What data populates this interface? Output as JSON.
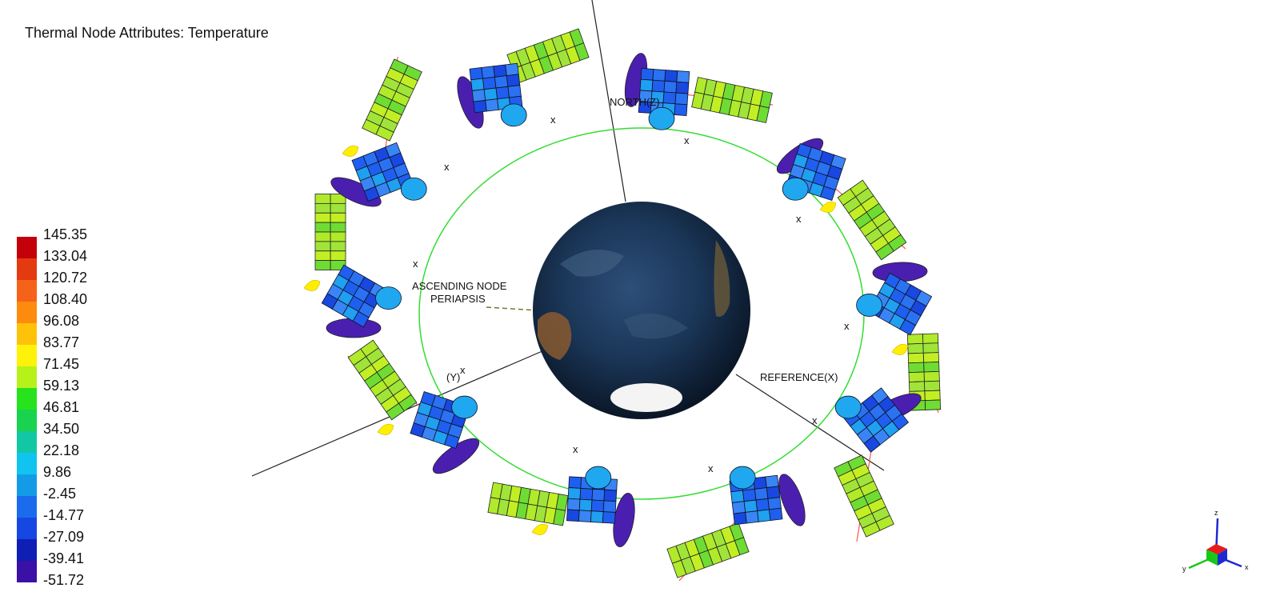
{
  "title": "Thermal Node Attributes: Temperature",
  "legend": {
    "values": [
      "145.35",
      "133.04",
      "120.72",
      "108.40",
      "96.08",
      "83.77",
      "71.45",
      "59.13",
      "46.81",
      "34.50",
      "22.18",
      "9.86",
      "-2.45",
      "-14.77",
      "-27.09",
      "-39.41",
      "-51.72"
    ],
    "colors": [
      "#c4000a",
      "#e43a10",
      "#f5631a",
      "#fd8c0e",
      "#ffc20a",
      "#fff20a",
      "#b6f21a",
      "#27e31d",
      "#19d34e",
      "#12c8a4",
      "#10c4ef",
      "#149be8",
      "#1b6ced",
      "#1747e3",
      "#0f1fb3",
      "#3a10a6"
    ]
  },
  "labels": {
    "north": "NORTH(Z)",
    "ascending_node": "ASCENDING NODE",
    "periapsis": "PERIAPSIS",
    "reference": "REFERENCE(X)",
    "y_axis": "(Y)",
    "x_marker": "x"
  },
  "triad": {
    "z": "z",
    "x": "x",
    "y": "y"
  },
  "colors": {
    "orbit": "#33dd33",
    "axis_line": "#222222",
    "boom": "#ff5555",
    "solar_panel": "#a8e830",
    "bus": "#1f5ff0",
    "dish": "#4a1fb0",
    "sun_marker": "#ffee00"
  }
}
